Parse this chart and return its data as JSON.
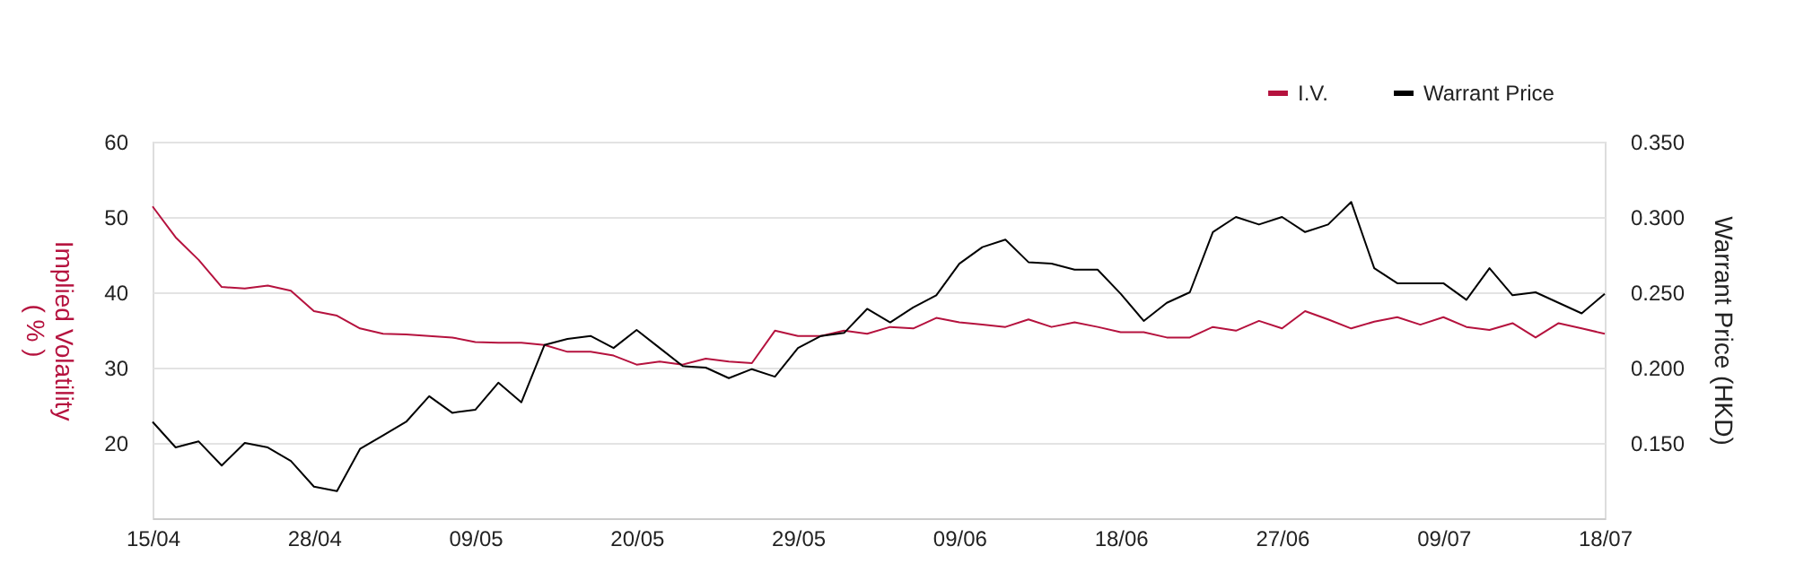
{
  "chart_data": {
    "type": "line",
    "categories": [
      "15/04",
      null,
      null,
      null,
      null,
      null,
      null,
      "28/04",
      null,
      null,
      null,
      null,
      null,
      null,
      "09/05",
      null,
      null,
      null,
      null,
      null,
      null,
      "20/05",
      null,
      null,
      null,
      null,
      null,
      null,
      "29/05",
      null,
      null,
      null,
      null,
      null,
      null,
      "09/06",
      null,
      null,
      null,
      null,
      null,
      null,
      "18/06",
      null,
      null,
      null,
      null,
      null,
      null,
      "27/06",
      null,
      null,
      null,
      null,
      null,
      null,
      "09/07",
      null,
      null,
      null,
      null,
      null,
      null,
      "18/07"
    ],
    "ylabel": "Implied Volatility\n( % )",
    "y2label": "Warrant Price (HKD)",
    "ylim": [
      10,
      60
    ],
    "yticks": [
      {
        "value": 10,
        "label": null
      },
      20,
      30,
      40,
      50,
      60
    ],
    "y2lim": [
      0.1,
      0.35
    ],
    "y2ticks": [
      {
        "value": 0.1,
        "label": null
      },
      {
        "value": 0.15,
        "label": "0.150"
      },
      {
        "value": 0.2,
        "label": "0.200"
      },
      {
        "value": 0.25,
        "label": "0.250"
      },
      {
        "value": 0.3,
        "label": "0.300"
      },
      {
        "value": 0.35,
        "label": "0.350"
      }
    ],
    "grid": "y",
    "legend": "top right",
    "marker": "none",
    "line_style": "solid",
    "series": [
      {
        "name": "I.V.",
        "color": "#b5123e",
        "values": [
          51.4,
          47.3,
          44.3,
          40.7,
          40.5,
          40.9,
          40.2,
          37.5,
          36.9,
          35.2,
          34.5,
          34.4,
          34.2,
          34.0,
          33.4,
          33.3,
          33.3,
          33.0,
          32.1,
          32.1,
          31.6,
          30.4,
          30.8,
          30.4,
          31.2,
          30.8,
          30.6,
          34.9,
          34.2,
          34.2,
          34.9,
          34.5,
          35.4,
          35.2,
          36.6,
          36.0,
          35.7,
          35.4,
          36.4,
          35.4,
          36.0,
          35.4,
          34.7,
          34.7,
          34.0,
          34.0,
          35.4,
          34.9,
          36.2,
          35.2,
          37.5,
          36.4,
          35.2,
          36.1,
          36.7,
          35.7,
          36.7,
          35.4,
          35.0,
          35.9,
          34.0,
          35.9,
          35.2,
          34.5
        ]
      },
      {
        "name": "Warrant Price",
        "color": "#000000",
        "axis": "y2",
        "values": [
          0.164,
          0.147,
          0.151,
          0.135,
          0.15,
          0.147,
          0.138,
          0.121,
          0.118,
          0.146,
          0.155,
          0.164,
          0.181,
          0.17,
          0.172,
          0.19,
          0.177,
          0.215,
          0.219,
          0.221,
          0.213,
          0.225,
          0.213,
          0.201,
          0.2,
          0.193,
          0.199,
          0.194,
          0.213,
          0.221,
          0.223,
          0.239,
          0.23,
          0.24,
          0.248,
          0.269,
          0.28,
          0.285,
          0.27,
          0.269,
          0.265,
          0.265,
          0.249,
          0.231,
          0.243,
          0.25,
          0.29,
          0.3,
          0.295,
          0.3,
          0.29,
          0.295,
          0.31,
          0.266,
          0.256,
          0.256,
          0.256,
          0.245,
          0.266,
          0.248,
          0.25,
          0.243,
          0.236,
          0.249
        ]
      }
    ]
  }
}
